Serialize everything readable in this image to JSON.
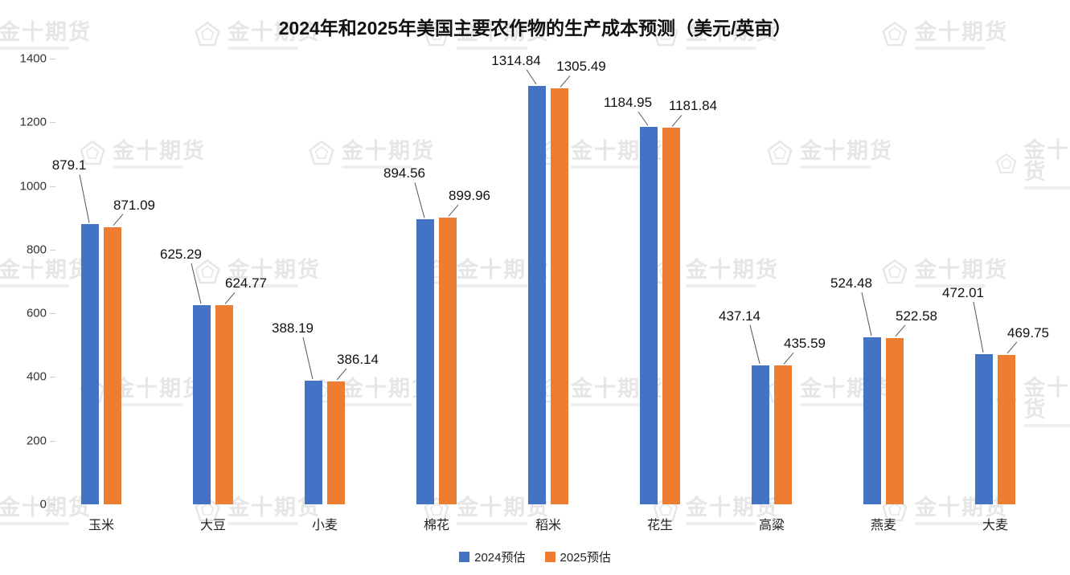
{
  "title": "2024年和2025年美国主要农作物的生产成本预测（美元/英亩）",
  "watermark": {
    "text": "金十期货"
  },
  "legend": [
    {
      "label": "2024预估",
      "color": "#4472c4"
    },
    {
      "label": "2025预估",
      "color": "#ed7d31"
    }
  ],
  "chart_data": {
    "type": "bar",
    "title": "2024年和2025年美国主要农作物的生产成本预测（美元/英亩）",
    "categories": [
      "玉米",
      "大豆",
      "小麦",
      "棉花",
      "稻米",
      "花生",
      "高粱",
      "燕麦",
      "大麦"
    ],
    "series": [
      {
        "name": "2024预估",
        "color": "#4472c4",
        "values": [
          879.1,
          625.29,
          388.19,
          894.56,
          1314.84,
          1184.95,
          437.14,
          524.48,
          472.01
        ]
      },
      {
        "name": "2025预估",
        "color": "#ed7d31",
        "values": [
          871.09,
          624.77,
          386.14,
          899.96,
          1305.49,
          1181.84,
          435.59,
          522.58,
          469.75
        ]
      }
    ],
    "ylim": [
      0,
      1400
    ],
    "yticks": [
      0,
      200,
      400,
      600,
      800,
      1000,
      1200,
      1400
    ],
    "grid": false,
    "legend_position": "bottom",
    "data_labels": true
  }
}
